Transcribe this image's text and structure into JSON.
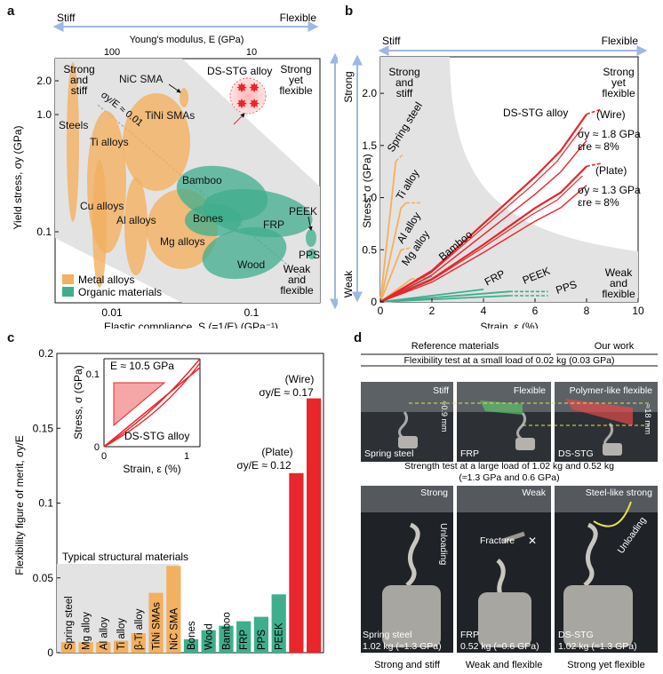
{
  "panel_a": {
    "letter": "a",
    "stiff_label": "Stiff",
    "flexible_label": "Flexible",
    "top_axis_title": "Young's modulus, E (GPa)",
    "top_ticks": [
      "100",
      "10"
    ],
    "ylabel": "Yield stress, σy (GPa)",
    "xlabel": "Elastic compliance, S (=1/E) (GPa⁻¹)",
    "y_ticks": [
      "2.0",
      "1.0",
      "0.1"
    ],
    "x_ticks": [
      "0.01",
      "0.1"
    ],
    "corner_tl": [
      "Strong",
      "and",
      "stiff"
    ],
    "corner_tr": [
      "Strong",
      "yet",
      "flexible"
    ],
    "corner_br": [
      "Weak",
      "and",
      "flexible"
    ],
    "ds_stg_label": "DS-STG alloy",
    "ratio_label": "σy/E ≈ 0.01",
    "legend": [
      "Metal alloys",
      "Organic materials"
    ],
    "metal_color": "#f2b060",
    "organic_color": "#3fae8c",
    "ds_color": "#e8262c",
    "materials": [
      "NiC SMA",
      "TiNi SMAs",
      "Steels",
      "Ti alloys",
      "Cu alloys",
      "Al alloys",
      "Mg alloys",
      "Bamboo",
      "Bones",
      "Wood",
      "FRP",
      "PEEK",
      "PPS"
    ]
  },
  "panel_b": {
    "letter": "b",
    "stiff_label": "Stiff",
    "flexible_label": "Flexible",
    "strong_label": "Strong",
    "weak_label": "Weak",
    "corner_tl": [
      "Strong",
      "and",
      "stiff"
    ],
    "corner_tr": [
      "Strong",
      "yet",
      "flexible"
    ],
    "corner_br": [
      "Weak",
      "and",
      "flexible"
    ],
    "ylabel": "Stress, σ (GPa)",
    "xlabel": "Strain, ε (%)",
    "curve_labels": [
      "Spring steel",
      "Ti alloy",
      "Al alloy",
      "Mg alloy",
      "Bamboo",
      "FRP",
      "PEEK",
      "PPS"
    ],
    "ds_label": "DS-STG alloy",
    "wire_label": "(Wire)",
    "wire_sy": "σy ≈ 1.8 GPa",
    "wire_ere": "εre ≈ 8%",
    "plate_label": "(Plate)",
    "plate_sy": "σy ≈ 1.3 GPa",
    "plate_ere": "εre ≈ 8%"
  },
  "panel_c": {
    "letter": "c",
    "ylabel": "Flexibility figure of merit, σy/E",
    "typical_label": "Typical structural materials",
    "wire_label": "(Wire)",
    "wire_value_label": "σy/E ≈ 0.17",
    "plate_label": "(Plate)",
    "plate_value_label": "σy/E ≈ 0.12",
    "inset": {
      "modulus_label": "E ≈ 10.5 GPa",
      "ylabel": "Stress, σ (GPa)",
      "xlabel": "Strain, ε (%)",
      "curve_label": "DS-STG alloy",
      "yticks": [
        "0",
        "0.1"
      ],
      "xticks": [
        "0",
        "1"
      ]
    }
  },
  "panel_d": {
    "letter": "d",
    "ref_header": "Reference materials",
    "work_header": "Our work",
    "test1_title": "Flexibility test at a small load of 0.02 kg (0.03 GPa)",
    "test2_title": "Strength test at a large load of 1.02 kg and 0.52 kg",
    "test2_subtitle": "(≈1.3 GPa and 0.6 GPa)",
    "top_photos": [
      {
        "tag": "Stiff",
        "name": "Spring steel",
        "measure": "≈0.9 mm"
      },
      {
        "tag": "Flexible",
        "name": "FRP",
        "measure": ""
      },
      {
        "tag": "Polymer-like flexible",
        "name": "DS-STG",
        "measure": "≈18 mm"
      }
    ],
    "bottom_photos": [
      {
        "tag": "Strong",
        "name": "Spring steel",
        "load": "1.02 kg (≈1.3 GPa)",
        "action": "Unloading",
        "caption": "Strong and stiff"
      },
      {
        "tag": "Weak",
        "name": "FRP",
        "load": "0.52 kg (≈0.6 GPa)",
        "action": "Fracture",
        "caption": "Weak and flexible"
      },
      {
        "tag": "Steel-like strong",
        "name": "DS-STG",
        "load": "1.02 kg (≈1.3 GPa)",
        "action": "Unloading",
        "caption": "Strong yet flexible"
      }
    ]
  },
  "chart_data": [
    {
      "type": "scatter",
      "title": "",
      "xlabel": "Elastic compliance, S (=1/E) (GPa⁻¹)",
      "ylabel": "Yield stress, σy (GPa)",
      "x_scale": "log",
      "y_scale": "log",
      "xlim": [
        0.0045,
        0.33
      ],
      "ylim": [
        0.03,
        2.6
      ],
      "annotation": "σy/E ≈ 0.01",
      "legend_position": "bottom-left",
      "series": [
        {
          "name": "Metal alloys",
          "regions": [
            {
              "label": "Steels",
              "x": 0.0053,
              "y": 0.9
            },
            {
              "label": "NiC SMA",
              "x": 0.018,
              "y": 1.5
            },
            {
              "label": "TiNi SMAs",
              "x": 0.018,
              "y": 0.8
            },
            {
              "label": "Ti alloys",
              "x": 0.011,
              "y": 0.55
            },
            {
              "label": "Cu alloys",
              "x": 0.008,
              "y": 0.2
            },
            {
              "label": "Al alloys",
              "x": 0.014,
              "y": 0.15
            },
            {
              "label": "Mg alloys",
              "x": 0.022,
              "y": 0.1
            }
          ]
        },
        {
          "name": "Organic materials",
          "regions": [
            {
              "label": "Bamboo",
              "x": 0.05,
              "y": 0.25
            },
            {
              "label": "Bones",
              "x": 0.06,
              "y": 0.13
            },
            {
              "label": "Wood",
              "x": 0.09,
              "y": 0.07
            },
            {
              "label": "FRP",
              "x": 0.1,
              "y": 0.12
            },
            {
              "label": "PEEK",
              "x": 0.27,
              "y": 0.1
            },
            {
              "label": "PPS",
              "x": 0.29,
              "y": 0.075
            }
          ]
        },
        {
          "name": "DS-STG alloy",
          "points": [
            {
              "x": 0.095,
              "y": 1.8
            },
            {
              "x": 0.095,
              "y": 1.3
            }
          ]
        }
      ]
    },
    {
      "type": "line",
      "title": "",
      "xlabel": "Strain, ε (%)",
      "ylabel": "Stress, σ (GPa)",
      "xlim": [
        0,
        10
      ],
      "ylim": [
        0,
        2.35
      ],
      "x_ticks": [
        0,
        2,
        4,
        6,
        8,
        10
      ],
      "y_ticks": [
        0,
        0.5,
        1.0,
        1.5,
        2.0
      ],
      "series": [
        {
          "name": "Spring steel",
          "x": [
            0,
            0.6,
            0.9
          ],
          "y": [
            0,
            1.35,
            1.42
          ]
        },
        {
          "name": "Ti alloy",
          "x": [
            0,
            0.8,
            1.0,
            1.6
          ],
          "y": [
            0,
            0.9,
            0.95,
            0.95
          ]
        },
        {
          "name": "Al alloy",
          "x": [
            0,
            0.8,
            1.2
          ],
          "y": [
            0,
            0.5,
            0.52
          ]
        },
        {
          "name": "Mg alloy",
          "x": [
            0,
            1.2,
            2.0
          ],
          "y": [
            0,
            0.22,
            0.24
          ]
        },
        {
          "name": "Bamboo",
          "x": [
            0,
            2.0
          ],
          "y": [
            0,
            0.25
          ]
        },
        {
          "name": "FRP",
          "x": [
            0,
            4.0
          ],
          "y": [
            0,
            0.12
          ]
        },
        {
          "name": "PEEK",
          "x": [
            0,
            5.0,
            6.5
          ],
          "y": [
            0,
            0.1,
            0.1
          ]
        },
        {
          "name": "PPS",
          "x": [
            0,
            5.0,
            6.5
          ],
          "y": [
            0,
            0.06,
            0.06
          ]
        },
        {
          "name": "DS-STG alloy (Wire)",
          "x": [
            0,
            2,
            4,
            6,
            7,
            8.0,
            8.6
          ],
          "y": [
            0,
            0.3,
            0.75,
            1.2,
            1.45,
            1.8,
            1.85
          ]
        },
        {
          "name": "DS-STG alloy (Plate)",
          "x": [
            0,
            2,
            4,
            6,
            7,
            8.0,
            8.6
          ],
          "y": [
            0,
            0.22,
            0.55,
            0.9,
            1.05,
            1.3,
            1.33
          ]
        }
      ],
      "annotations": {
        "wire": [
          "σy ≈ 1.8 GPa",
          "εre ≈ 8%"
        ],
        "plate": [
          "σy ≈ 1.3 GPa",
          "εre ≈ 8%"
        ]
      }
    },
    {
      "type": "bar",
      "title": "",
      "xlabel": "",
      "ylabel": "Flexibility figure of merit, σy/E",
      "ylim": [
        0,
        0.2
      ],
      "y_ticks": [
        0,
        0.05,
        0.1,
        0.15,
        0.2
      ],
      "categories": [
        "Spring steel",
        "Mg alloy",
        "Al alloy",
        "Ti alloy",
        "β-Ti alloy",
        "TiNi SMAs",
        "NiC SMA",
        "Bones",
        "Wood",
        "Bamboo",
        "FRP",
        "PPS",
        "PEEK",
        "DS-STG (Plate)",
        "DS-STG (Wire)"
      ],
      "values": [
        0.007,
        0.007,
        0.007,
        0.008,
        0.013,
        0.04,
        0.058,
        0.009,
        0.015,
        0.018,
        0.021,
        0.024,
        0.039,
        0.12,
        0.17
      ],
      "groups": [
        "metal",
        "metal",
        "metal",
        "metal",
        "metal",
        "metal",
        "metal",
        "organic",
        "organic",
        "organic",
        "organic",
        "organic",
        "organic",
        "ds",
        "ds"
      ],
      "annotations": {
        "plate": "σy/E ≈ 0.12",
        "wire": "σy/E ≈ 0.17",
        "region": "Typical structural materials"
      },
      "inset": {
        "type": "line",
        "xlabel": "Strain, ε (%)",
        "ylabel": "Stress, σ (GPa)",
        "label": "DS-STG alloy",
        "annotation": "E ≈ 10.5 GPa",
        "xlim": [
          0,
          1.2
        ],
        "ylim": [
          0,
          0.12
        ],
        "x": [
          0,
          0.5,
          1.0,
          1.15
        ],
        "y": [
          0,
          0.052,
          0.105,
          0.12
        ]
      }
    }
  ]
}
